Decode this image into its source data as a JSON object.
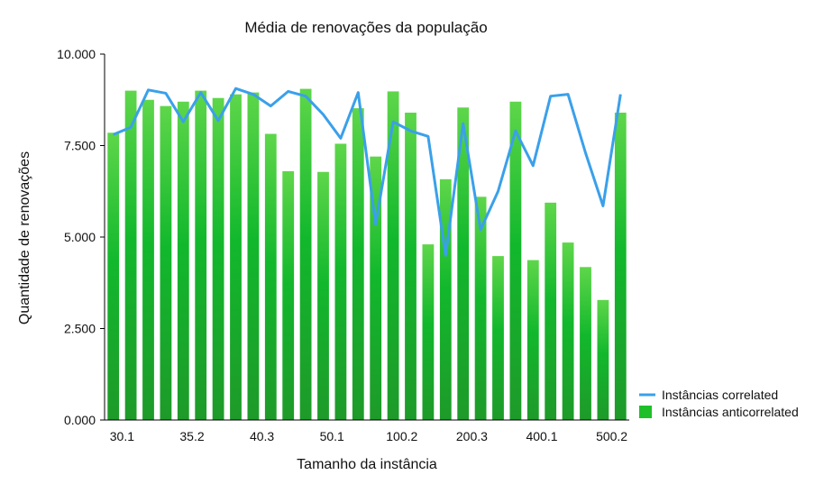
{
  "chart_data": {
    "type": "bar",
    "title": "Média de renovações da população",
    "xlabel": "Tamanho da instância",
    "ylabel": "Quantidade de renovações",
    "ylim": [
      0,
      10000
    ],
    "y_ticks": [
      "0.000",
      "2.500",
      "5.000",
      "7.500",
      "10.000"
    ],
    "y_tick_values": [
      0,
      2500,
      5000,
      7500,
      10000
    ],
    "x_tick_labels": [
      "30.1",
      "35.2",
      "40.3",
      "50.1",
      "100.2",
      "200.3",
      "400.1",
      "500.2"
    ],
    "x_tick_indices": [
      0,
      4,
      8,
      12,
      16,
      20,
      24,
      28
    ],
    "grid": false,
    "legend_position": "bottom-right",
    "series": [
      {
        "name": "Instâncias anticorrelated",
        "kind": "bar",
        "color": "#1fbf2a",
        "values": [
          7850,
          9000,
          8750,
          8580,
          8700,
          9000,
          8800,
          8900,
          8950,
          7820,
          6800,
          9050,
          6780,
          7550,
          8520,
          7200,
          8980,
          8400,
          4800,
          6580,
          8540,
          6100,
          4480,
          8700,
          4370,
          5940,
          4850,
          4180,
          3280,
          8400
        ]
      },
      {
        "name": "Instâncias correlated",
        "kind": "line",
        "color": "#3aa0ea",
        "values": [
          7800,
          8000,
          9020,
          8930,
          8150,
          8950,
          8180,
          9060,
          8900,
          8580,
          8980,
          8850,
          8350,
          7700,
          8950,
          5350,
          8150,
          7900,
          7750,
          4500,
          8100,
          5200,
          6250,
          7900,
          6950,
          8850,
          8900,
          7300,
          5850,
          8900
        ]
      }
    ]
  }
}
